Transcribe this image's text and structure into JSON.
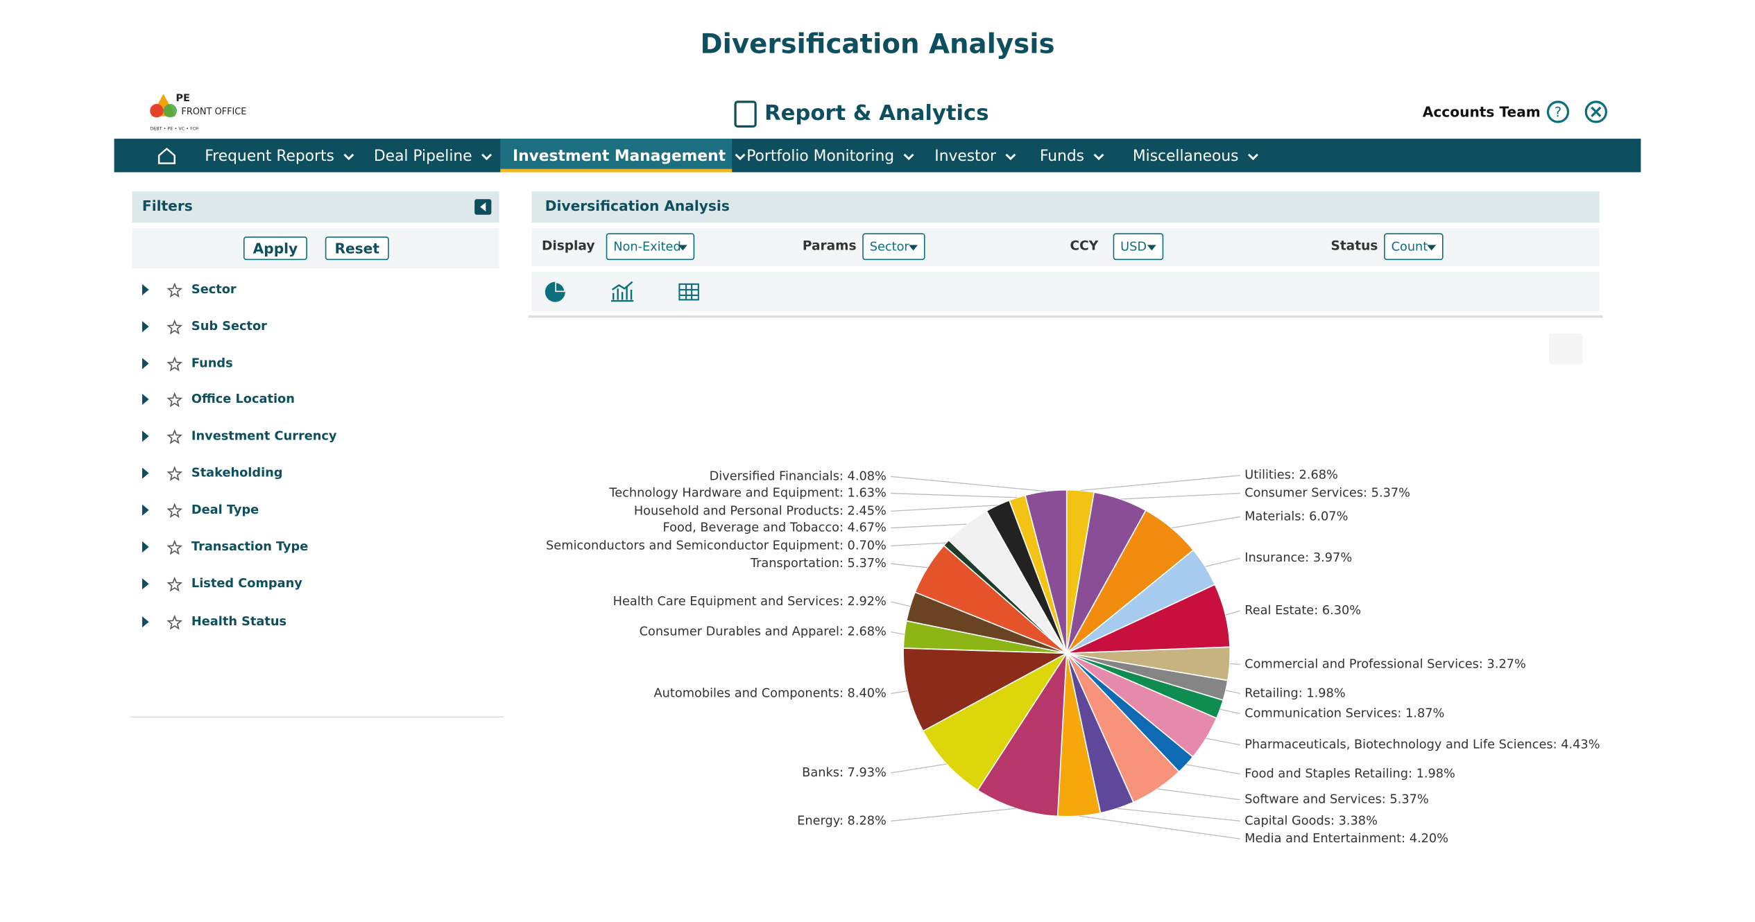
{
  "page_title": "Diversification Analysis",
  "header": {
    "logo": "PE",
    "logo_sub": "FRONT OFFICE",
    "logo_tag": "DEBT • PE • VC • FOF",
    "title": "Report & Analytics",
    "user": "Accounts Team"
  },
  "nav": [
    "Frequent Reports",
    "Deal Pipeline",
    "Investment Management",
    "Portfolio Monitoring",
    "Investor",
    "Funds",
    "Miscellaneous"
  ],
  "filters": {
    "title": "Filters",
    "apply": "Apply",
    "reset": "Reset",
    "items": [
      "Sector",
      "Sub Sector",
      "Funds",
      "Office Location",
      "Investment Currency",
      "Stakeholding",
      "Deal Type",
      "Transaction Type",
      "Listed Company",
      "Health Status"
    ]
  },
  "panel": {
    "title": "Diversification Analysis",
    "controls": [
      {
        "label": "Display",
        "value": "Non-Exited"
      },
      {
        "label": "Params",
        "value": "Sector"
      },
      {
        "label": "CCY",
        "value": "USD"
      },
      {
        "label": "Status",
        "value": "Count"
      }
    ]
  },
  "chart_data": {
    "type": "pie",
    "values": [
      2.68,
      5.37,
      6.07,
      3.97,
      6.3,
      3.27,
      1.98,
      1.87,
      4.43,
      1.98,
      5.37,
      3.38,
      4.2,
      8.28,
      7.93,
      8.4,
      2.68,
      2.92,
      5.37,
      0.7,
      4.67,
      2.45,
      1.63,
      4.08
    ],
    "value_labels": [
      "Utilities: 2.68%",
      "Consumer Services: 5.37%",
      "Materials: 6.07%",
      "Insurance: 3.97%",
      "Real Estate: 6.30%",
      "Commercial and Professional Services: 3.27%",
      "Retailing: 1.98%",
      "Communication Services: 1.87%",
      "Pharmaceuticals, Biotechnology and Life Sciences: 4.43%",
      "Food and Staples Retailing: 1.98%",
      "Software and Services: 5.37%",
      "Capital Goods: 3.38%",
      "Media and Entertainment: 4.20%",
      "Energy: 8.28%",
      "Banks: 7.93%",
      "Automobiles and Components: 8.40%",
      "Consumer Durables and Apparel: 2.68%",
      "Health Care Equipment and Services: 2.92%",
      "Transportation: 5.37%",
      "Semiconductors and Semiconductor Equipment: 0.70%",
      "Food, Beverage and Tobacco: 4.67%",
      "Household and Personal Products: 2.45%",
      "Technology Hardware and Equipment: 1.63%",
      "Diversified Financials: 4.08%"
    ],
    "colors": [
      "#f2c314",
      "#8a4e96",
      "#f28c0f",
      "#a6cbee",
      "#c8103e",
      "#c7b37f",
      "#858585",
      "#0f8c4f",
      "#e58aab",
      "#0f6ab4",
      "#f7937a",
      "#5f489a",
      "#f5a70c",
      "#b8376a",
      "#dcd60a",
      "#8a2c19",
      "#8cb515",
      "#6a4322",
      "#e5532b",
      "#1f3b2a",
      "#f1f1f1",
      "#222222",
      "#f2c314",
      "#8a4e96"
    ]
  }
}
